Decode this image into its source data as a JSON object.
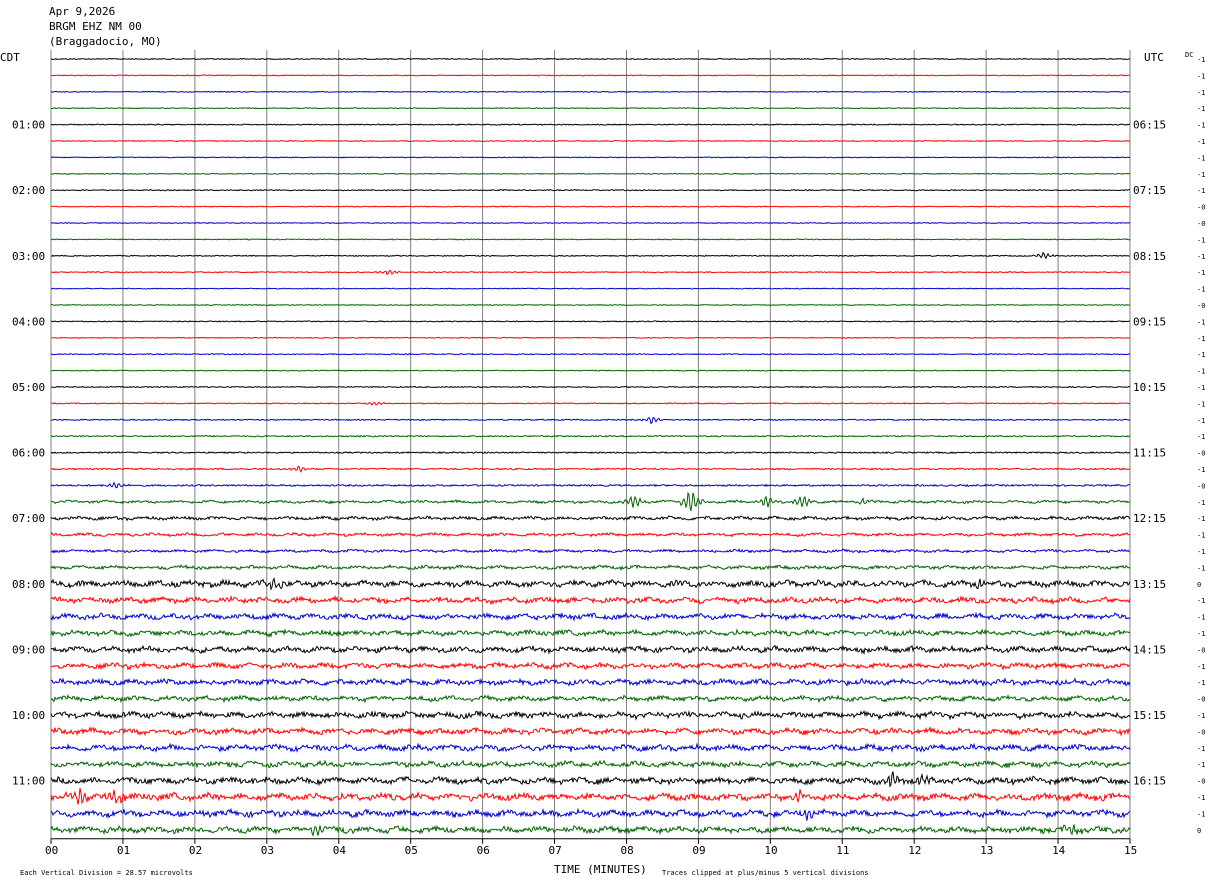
{
  "header": {
    "date": "Apr 9,2026",
    "station": "BRGM EHZ NM 00",
    "location": "(Braggadocio, MO)"
  },
  "left_timezone": "CDT",
  "right_timezone": "UTC",
  "dc_label": "DC",
  "footer": {
    "scale_note": "Each Vertical Division =   28.57 microvolts",
    "clip_note": "Traces clipped at plus/minus 5 vertical divisions"
  },
  "colors": {
    "trace_cycle": [
      "#000000",
      "#ff0000",
      "#0000cc",
      "#006400"
    ],
    "grid": "#808080"
  },
  "chart_data": {
    "type": "line",
    "xlabel": "TIME (MINUTES)",
    "xlim": [
      0,
      15
    ],
    "x_ticks": [
      "00",
      "01",
      "02",
      "03",
      "04",
      "05",
      "06",
      "07",
      "08",
      "09",
      "10",
      "11",
      "12",
      "13",
      "14",
      "15"
    ],
    "left_hour_labels": [
      "01:00",
      "02:00",
      "03:00",
      "04:00",
      "05:00",
      "06:00",
      "07:00",
      "08:00",
      "09:00",
      "10:00",
      "11:00"
    ],
    "right_hour_labels": [
      "06:15",
      "07:15",
      "08:15",
      "09:15",
      "10:15",
      "11:15",
      "12:15",
      "13:15",
      "14:15",
      "15:15",
      "16:15"
    ],
    "traces_per_hour": 4,
    "trace_count": 48,
    "dc_offsets": [
      "-1",
      "-1",
      "-1",
      "-1",
      "-1",
      "-1",
      "-1",
      "-1",
      "-1",
      "-0",
      "-0",
      "-1",
      "-1",
      "-1",
      "-1",
      "-0",
      "-1",
      "-1",
      "-1",
      "-1",
      "-1",
      "-1",
      "-1",
      "-1",
      "-0",
      "-1",
      "-0",
      "-1",
      "-1",
      "-1",
      "-1",
      "-1",
      "0",
      "-1",
      "-1",
      "-1",
      "-0",
      "-1",
      "-1",
      "-0",
      "-1",
      "-0",
      "-1",
      "-1",
      "-0",
      "-1",
      "-1",
      "0"
    ],
    "activity": [
      0.6,
      0.5,
      0.5,
      0.5,
      0.6,
      0.5,
      0.5,
      0.5,
      0.6,
      0.5,
      0.5,
      0.5,
      0.6,
      0.6,
      0.5,
      0.5,
      0.6,
      0.5,
      0.6,
      0.5,
      0.6,
      0.6,
      0.7,
      0.8,
      0.8,
      0.9,
      1.0,
      1.3,
      1.6,
      1.4,
      1.3,
      1.7,
      3.0,
      2.6,
      2.6,
      2.4,
      2.7,
      2.5,
      2.6,
      2.3,
      2.8,
      2.7,
      2.8,
      2.5,
      3.0,
      3.2,
      3.0,
      2.9
    ],
    "events": [
      {
        "trace": 12,
        "minute": 13.8,
        "amp": 4
      },
      {
        "trace": 13,
        "minute": 4.7,
        "amp": 4
      },
      {
        "trace": 21,
        "minute": 4.5,
        "amp": 3
      },
      {
        "trace": 22,
        "minute": 8.35,
        "amp": 5
      },
      {
        "trace": 25,
        "minute": 3.45,
        "amp": 5
      },
      {
        "trace": 26,
        "minute": 0.9,
        "amp": 4
      },
      {
        "trace": 27,
        "minute": 8.1,
        "amp": 10
      },
      {
        "trace": 27,
        "minute": 8.9,
        "amp": 20
      },
      {
        "trace": 27,
        "minute": 9.95,
        "amp": 8
      },
      {
        "trace": 27,
        "minute": 10.45,
        "amp": 9
      },
      {
        "trace": 27,
        "minute": 11.3,
        "amp": 4
      },
      {
        "trace": 32,
        "minute": 3.1,
        "amp": 7
      },
      {
        "trace": 32,
        "minute": 12.9,
        "amp": 7
      },
      {
        "trace": 44,
        "minute": 11.7,
        "amp": 12
      },
      {
        "trace": 44,
        "minute": 12.1,
        "amp": 9
      },
      {
        "trace": 45,
        "minute": 0.4,
        "amp": 12
      },
      {
        "trace": 45,
        "minute": 0.9,
        "amp": 10
      },
      {
        "trace": 45,
        "minute": 10.4,
        "amp": 6
      },
      {
        "trace": 46,
        "minute": 10.5,
        "amp": 8
      },
      {
        "trace": 47,
        "minute": 3.7,
        "amp": 6
      },
      {
        "trace": 47,
        "minute": 14.2,
        "amp": 6
      }
    ]
  }
}
